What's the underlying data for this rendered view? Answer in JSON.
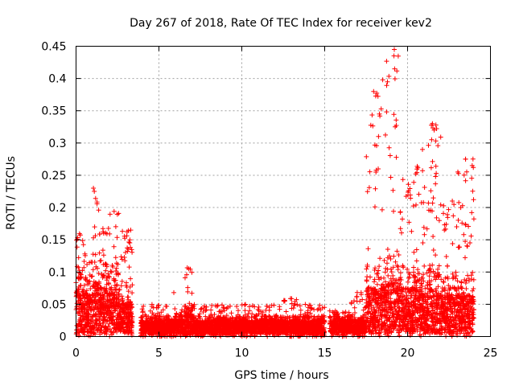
{
  "chart_data": {
    "type": "scatter",
    "title": "Day 267 of 2018, Rate Of TEC Index for receiver kev2",
    "xlabel": "GPS time / hours",
    "ylabel": "ROTI / TECUs",
    "xlim": [
      0,
      25
    ],
    "ylim": [
      0,
      0.45
    ],
    "xticks": [
      0,
      5,
      10,
      15,
      20,
      25
    ],
    "xtick_labels": [
      "0",
      "5",
      "10",
      "15",
      "20",
      "25"
    ],
    "yticks": [
      0,
      0.05,
      0.1,
      0.15,
      0.2,
      0.25,
      0.3,
      0.35,
      0.4,
      0.45
    ],
    "ytick_labels": [
      "0",
      "0.05",
      "0.1",
      "0.15",
      "0.2",
      "0.25",
      "0.3",
      "0.35",
      "0.4",
      "0.45"
    ],
    "grid": true,
    "marker": "+",
    "color": "#ff0000",
    "series": [
      {
        "name": "ROTI",
        "envelope": [
          {
            "x_range": [
              0.0,
              0.5
            ],
            "peak": 0.165,
            "typical": 0.07
          },
          {
            "x_range": [
              0.5,
              1.0
            ],
            "peak": 0.13,
            "typical": 0.06
          },
          {
            "x_range": [
              1.0,
              1.4
            ],
            "peak": 0.23,
            "typical": 0.08
          },
          {
            "x_range": [
              1.4,
              2.0
            ],
            "peak": 0.175,
            "typical": 0.07
          },
          {
            "x_range": [
              2.0,
              2.6
            ],
            "peak": 0.195,
            "typical": 0.07
          },
          {
            "x_range": [
              2.6,
              3.2
            ],
            "peak": 0.165,
            "typical": 0.05
          },
          {
            "x_range": [
              3.2,
              3.4
            ],
            "peak": 0.15,
            "typical": 0.05
          },
          {
            "x_range": [
              3.9,
              6.5
            ],
            "peak": 0.05,
            "typical": 0.02
          },
          {
            "x_range": [
              6.5,
              7.0
            ],
            "peak": 0.11,
            "typical": 0.03
          },
          {
            "x_range": [
              7.0,
              12.5
            ],
            "peak": 0.05,
            "typical": 0.02
          },
          {
            "x_range": [
              12.5,
              13.3
            ],
            "peak": 0.06,
            "typical": 0.02
          },
          {
            "x_range": [
              13.3,
              15.0
            ],
            "peak": 0.05,
            "typical": 0.02
          },
          {
            "x_range": [
              15.3,
              16.6
            ],
            "peak": 0.04,
            "typical": 0.02
          },
          {
            "x_range": [
              16.6,
              17.5
            ],
            "peak": 0.07,
            "typical": 0.02
          },
          {
            "x_range": [
              17.5,
              18.5
            ],
            "peak": 0.38,
            "typical": 0.07
          },
          {
            "x_range": [
              18.5,
              19.5
            ],
            "peak": 0.45,
            "typical": 0.08
          },
          {
            "x_range": [
              19.5,
              20.5
            ],
            "peak": 0.255,
            "typical": 0.07
          },
          {
            "x_range": [
              20.5,
              21.2
            ],
            "peak": 0.29,
            "typical": 0.07
          },
          {
            "x_range": [
              21.2,
              22.0
            ],
            "peak": 0.33,
            "typical": 0.07
          },
          {
            "x_range": [
              22.0,
              22.8
            ],
            "peak": 0.21,
            "typical": 0.06
          },
          {
            "x_range": [
              22.8,
              24.0
            ],
            "peak": 0.28,
            "typical": 0.06
          }
        ],
        "highlights": [
          {
            "x": 17.95,
            "y": 0.38
          },
          {
            "x": 18.3,
            "y": 0.345
          },
          {
            "x": 18.25,
            "y": 0.31
          },
          {
            "x": 19.2,
            "y": 0.445
          },
          {
            "x": 19.18,
            "y": 0.435
          },
          {
            "x": 19.22,
            "y": 0.415
          },
          {
            "x": 19.25,
            "y": 0.325
          },
          {
            "x": 21.5,
            "y": 0.33
          },
          {
            "x": 21.6,
            "y": 0.32
          },
          {
            "x": 21.45,
            "y": 0.305
          },
          {
            "x": 20.9,
            "y": 0.29
          },
          {
            "x": 23.5,
            "y": 0.275
          },
          {
            "x": 23.9,
            "y": 0.265
          },
          {
            "x": 1.05,
            "y": 0.23
          },
          {
            "x": 1.1,
            "y": 0.225
          },
          {
            "x": 3.3,
            "y": 0.165
          },
          {
            "x": 3.25,
            "y": 0.15
          },
          {
            "x": 6.8,
            "y": 0.105
          },
          {
            "x": 17.2,
            "y": 0.068
          },
          {
            "x": 5.9,
            "y": 0.068
          }
        ]
      }
    ]
  }
}
